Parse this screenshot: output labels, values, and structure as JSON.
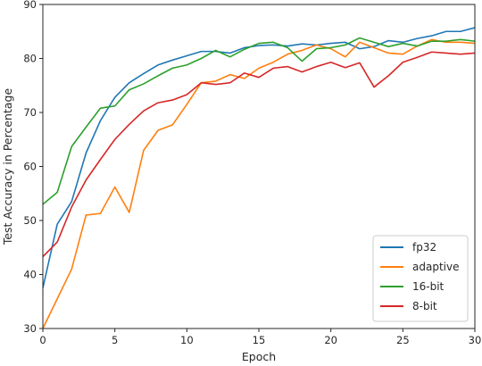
{
  "chart_data": {
    "type": "line",
    "title": "",
    "xlabel": "Epoch",
    "ylabel": "Test Accuracy in Percentage",
    "xlim": [
      0,
      30
    ],
    "ylim": [
      30,
      90
    ],
    "xticks": [
      0,
      5,
      10,
      15,
      20,
      25,
      30
    ],
    "yticks": [
      30,
      40,
      50,
      60,
      70,
      80,
      90
    ],
    "grid": false,
    "legend_position": "bottom-right",
    "x": [
      0,
      1,
      2,
      3,
      4,
      5,
      6,
      7,
      8,
      9,
      10,
      11,
      12,
      13,
      14,
      15,
      16,
      17,
      18,
      19,
      20,
      21,
      22,
      23,
      24,
      25,
      26,
      27,
      28,
      29,
      30
    ],
    "series": [
      {
        "name": "fp32",
        "color": "#1f77b4",
        "values": [
          37.5,
          49.3,
          53.5,
          62.5,
          68.5,
          72.8,
          75.5,
          77.2,
          78.8,
          79.7,
          80.5,
          81.3,
          81.3,
          81.0,
          82.0,
          82.4,
          82.5,
          82.3,
          82.7,
          82.5,
          82.8,
          83.0,
          81.8,
          82.2,
          83.3,
          83.0,
          83.7,
          84.2,
          85.0,
          85.0,
          85.7
        ]
      },
      {
        "name": "adaptive",
        "color": "#ff7f0e",
        "values": [
          30.0,
          35.5,
          41.0,
          51.0,
          51.3,
          56.2,
          51.5,
          63.0,
          66.7,
          67.7,
          71.5,
          75.5,
          75.8,
          77.0,
          76.3,
          78.2,
          79.3,
          80.8,
          81.5,
          82.5,
          81.8,
          80.3,
          83.0,
          82.0,
          81.0,
          80.8,
          82.3,
          83.5,
          83.0,
          83.0,
          82.8
        ]
      },
      {
        "name": "16-bit",
        "color": "#2ca02c",
        "values": [
          53.0,
          55.2,
          63.7,
          67.3,
          70.8,
          71.2,
          74.2,
          75.3,
          76.8,
          78.2,
          78.8,
          80.0,
          81.5,
          80.3,
          81.7,
          82.8,
          83.0,
          82.0,
          79.5,
          81.8,
          82.0,
          82.5,
          83.8,
          83.0,
          82.2,
          82.8,
          82.3,
          83.2,
          83.2,
          83.5,
          83.2
        ]
      },
      {
        "name": "8-bit",
        "color": "#d62728",
        "values": [
          43.3,
          46.0,
          52.5,
          57.5,
          61.3,
          65.0,
          67.8,
          70.3,
          71.8,
          72.3,
          73.3,
          75.5,
          75.2,
          75.5,
          77.3,
          76.5,
          78.2,
          78.5,
          77.5,
          78.5,
          79.3,
          78.3,
          79.2,
          74.7,
          76.8,
          79.3,
          80.2,
          81.2,
          81.0,
          80.8,
          81.0
        ]
      }
    ]
  }
}
